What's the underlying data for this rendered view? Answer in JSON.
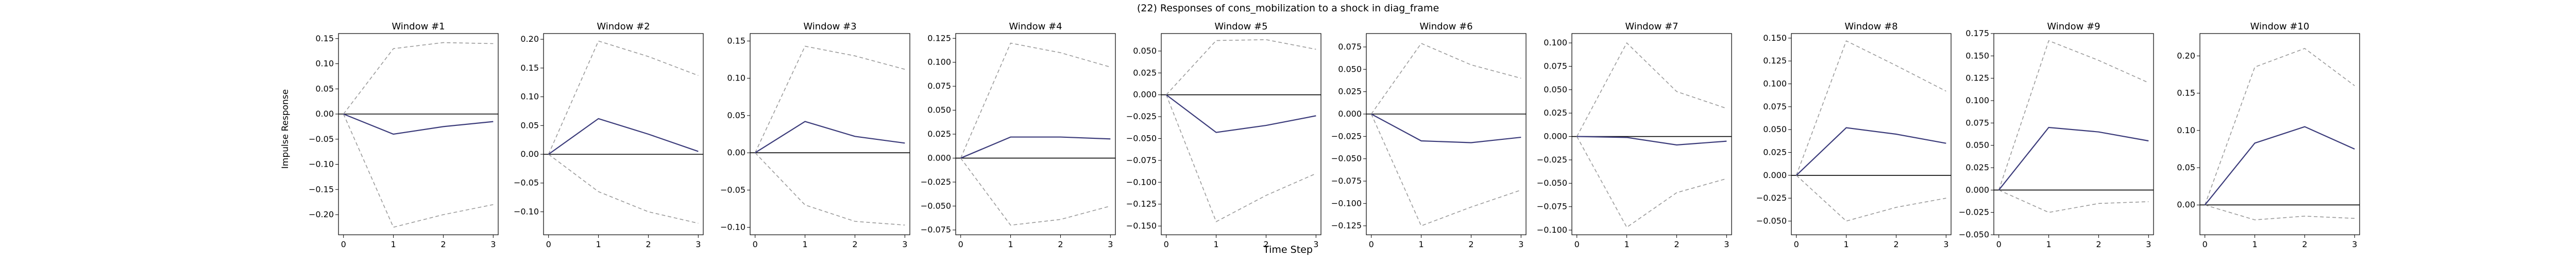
{
  "figure": {
    "title": "(22) Responses of cons_mobilization to a shock in diag_frame",
    "xlabel": "Time Step",
    "ylabel": "Impulse Response"
  },
  "colors": {
    "response": "#3b3b7a",
    "bands": "#9a9a9a",
    "zero_line": "#000000"
  },
  "chart_data": [
    {
      "type": "line",
      "title": "Window #1",
      "x": [
        0,
        1,
        2,
        3
      ],
      "xticks": [
        0,
        1,
        2,
        3
      ],
      "ylim": [
        -0.24,
        0.16
      ],
      "yticks": [
        -0.2,
        -0.15,
        -0.1,
        -0.05,
        0.0,
        0.05,
        0.1,
        0.15
      ],
      "ytick_labels": [
        "−0.20",
        "−0.15",
        "−0.10",
        "−0.05",
        "0.00",
        "0.05",
        "0.10",
        "0.15"
      ],
      "response": [
        0,
        -0.04,
        -0.025,
        -0.015
      ],
      "upper": [
        0,
        0.13,
        0.142,
        0.14
      ],
      "lower": [
        0,
        -0.225,
        -0.2,
        -0.18
      ]
    },
    {
      "type": "line",
      "title": "Window #2",
      "x": [
        0,
        1,
        2,
        3
      ],
      "xticks": [
        0,
        1,
        2,
        3
      ],
      "ylim": [
        -0.14,
        0.21
      ],
      "yticks": [
        -0.1,
        -0.05,
        0.0,
        0.05,
        0.1,
        0.15,
        0.2
      ],
      "ytick_labels": [
        "−0.10",
        "−0.05",
        "0.00",
        "0.05",
        "0.10",
        "0.15",
        "0.20"
      ],
      "response": [
        0,
        0.062,
        0.035,
        0.005
      ],
      "upper": [
        0,
        0.197,
        0.17,
        0.137
      ],
      "lower": [
        0,
        -0.065,
        -0.1,
        -0.12
      ]
    },
    {
      "type": "line",
      "title": "Window #3",
      "x": [
        0,
        1,
        2,
        3
      ],
      "xticks": [
        0,
        1,
        2,
        3
      ],
      "ylim": [
        -0.11,
        0.16
      ],
      "yticks": [
        -0.1,
        -0.05,
        0.0,
        0.05,
        0.1,
        0.15
      ],
      "ytick_labels": [
        "−0.10",
        "−0.05",
        "0.00",
        "0.05",
        "0.10",
        "0.15"
      ],
      "response": [
        0,
        0.042,
        0.022,
        0.013
      ],
      "upper": [
        0,
        0.143,
        0.13,
        0.112
      ],
      "lower": [
        0,
        -0.07,
        -0.092,
        -0.097
      ]
    },
    {
      "type": "line",
      "title": "Window #4",
      "x": [
        0,
        1,
        2,
        3
      ],
      "xticks": [
        0,
        1,
        2,
        3
      ],
      "ylim": [
        -0.08,
        0.13
      ],
      "yticks": [
        -0.075,
        -0.05,
        -0.025,
        0.0,
        0.025,
        0.05,
        0.075,
        0.1,
        0.125
      ],
      "ytick_labels": [
        "−0.075",
        "−0.050",
        "−0.025",
        "0.000",
        "0.025",
        "0.050",
        "0.075",
        "0.100",
        "0.125"
      ],
      "response": [
        0,
        0.022,
        0.022,
        0.02
      ],
      "upper": [
        0,
        0.12,
        0.11,
        0.095
      ],
      "lower": [
        0,
        -0.07,
        -0.064,
        -0.05
      ]
    },
    {
      "type": "line",
      "title": "Window #5",
      "x": [
        0,
        1,
        2,
        3
      ],
      "xticks": [
        0,
        1,
        2,
        3
      ],
      "ylim": [
        -0.16,
        0.07
      ],
      "yticks": [
        -0.15,
        -0.125,
        -0.1,
        -0.075,
        -0.05,
        -0.025,
        0.0,
        0.025,
        0.05
      ],
      "ytick_labels": [
        "−0.150",
        "−0.125",
        "−0.100",
        "−0.075",
        "−0.050",
        "−0.025",
        "0.000",
        "0.025",
        "0.050"
      ],
      "response": [
        0,
        -0.043,
        -0.035,
        -0.024
      ],
      "upper": [
        0,
        0.062,
        0.063,
        0.052
      ],
      "lower": [
        0,
        -0.145,
        -0.115,
        -0.09
      ]
    },
    {
      "type": "line",
      "title": "Window #6",
      "x": [
        0,
        1,
        2,
        3
      ],
      "xticks": [
        0,
        1,
        2,
        3
      ],
      "ylim": [
        -0.135,
        0.09
      ],
      "yticks": [
        -0.125,
        -0.1,
        -0.075,
        -0.05,
        -0.025,
        0.0,
        0.025,
        0.05,
        0.075
      ],
      "ytick_labels": [
        "−0.125",
        "−0.100",
        "−0.075",
        "−0.050",
        "−0.025",
        "0.000",
        "0.025",
        "0.050",
        "0.075"
      ],
      "response": [
        0,
        -0.03,
        -0.032,
        -0.026
      ],
      "upper": [
        0,
        0.079,
        0.055,
        0.04
      ],
      "lower": [
        0,
        -0.125,
        -0.104,
        -0.085
      ]
    },
    {
      "type": "line",
      "title": "Window #7",
      "x": [
        0,
        1,
        2,
        3
      ],
      "xticks": [
        0,
        1,
        2,
        3
      ],
      "ylim": [
        -0.105,
        0.11
      ],
      "yticks": [
        -0.1,
        -0.075,
        -0.05,
        -0.025,
        0.0,
        0.025,
        0.05,
        0.075,
        0.1
      ],
      "ytick_labels": [
        "−0.100",
        "−0.075",
        "−0.050",
        "−0.025",
        "0.000",
        "0.025",
        "0.050",
        "0.075",
        "0.100"
      ],
      "response": [
        0,
        -0.001,
        -0.009,
        -0.005
      ],
      "upper": [
        0,
        0.1,
        0.048,
        0.03
      ],
      "lower": [
        0,
        -0.097,
        -0.06,
        -0.045
      ]
    },
    {
      "type": "line",
      "title": "Window #8",
      "x": [
        0,
        1,
        2,
        3
      ],
      "xticks": [
        0,
        1,
        2,
        3
      ],
      "ylim": [
        -0.065,
        0.155
      ],
      "yticks": [
        -0.05,
        -0.025,
        0.0,
        0.025,
        0.05,
        0.075,
        0.1,
        0.125,
        0.15
      ],
      "ytick_labels": [
        "−0.050",
        "−0.025",
        "0.000",
        "0.025",
        "0.050",
        "0.075",
        "0.100",
        "0.125",
        "0.150"
      ],
      "response": [
        0,
        0.052,
        0.045,
        0.035
      ],
      "upper": [
        0,
        0.147,
        0.12,
        0.092
      ],
      "lower": [
        0,
        -0.05,
        -0.035,
        -0.025
      ]
    },
    {
      "type": "line",
      "title": "Window #9",
      "x": [
        0,
        1,
        2,
        3
      ],
      "xticks": [
        0,
        1,
        2,
        3
      ],
      "ylim": [
        -0.05,
        0.175
      ],
      "yticks": [
        -0.05,
        -0.025,
        0.0,
        0.025,
        0.05,
        0.075,
        0.1,
        0.125,
        0.15,
        0.175
      ],
      "ytick_labels": [
        "−0.050",
        "−0.025",
        "0.000",
        "0.025",
        "0.050",
        "0.075",
        "0.100",
        "0.125",
        "0.150",
        "0.175"
      ],
      "response": [
        0,
        0.07,
        0.065,
        0.055
      ],
      "upper": [
        0,
        0.167,
        0.145,
        0.12
      ],
      "lower": [
        0,
        -0.025,
        -0.015,
        -0.013
      ]
    },
    {
      "type": "line",
      "title": "Window #10",
      "x": [
        0,
        1,
        2,
        3
      ],
      "xticks": [
        0,
        1,
        2,
        3
      ],
      "ylim": [
        -0.04,
        0.23
      ],
      "yticks": [
        0.0,
        0.05,
        0.1,
        0.15,
        0.2
      ],
      "ytick_labels": [
        "0.00",
        "0.05",
        "0.10",
        "0.15",
        "0.20"
      ],
      "response": [
        0,
        0.083,
        0.105,
        0.075
      ],
      "upper": [
        0,
        0.185,
        0.21,
        0.16
      ],
      "lower": [
        0,
        -0.02,
        -0.015,
        -0.018
      ]
    }
  ]
}
